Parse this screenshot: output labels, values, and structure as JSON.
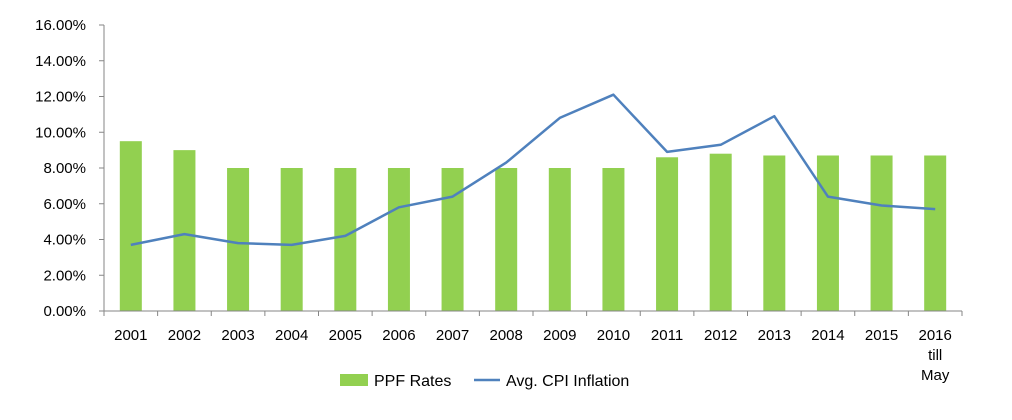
{
  "chart_data": {
    "type": "bar",
    "title": "",
    "xlabel": "",
    "ylabel": "",
    "categories": [
      "2001",
      "2002",
      "2003",
      "2004",
      "2005",
      "2006",
      "2007",
      "2008",
      "2009",
      "2010",
      "2011",
      "2012",
      "2013",
      "2014",
      "2015",
      "2016 till May"
    ],
    "category_lines": [
      [
        "2001"
      ],
      [
        "2002"
      ],
      [
        "2003"
      ],
      [
        "2004"
      ],
      [
        "2005"
      ],
      [
        "2006"
      ],
      [
        "2007"
      ],
      [
        "2008"
      ],
      [
        "2009"
      ],
      [
        "2010"
      ],
      [
        "2011"
      ],
      [
        "2012"
      ],
      [
        "2013"
      ],
      [
        "2014"
      ],
      [
        "2015"
      ],
      [
        "2016",
        "till",
        "May"
      ]
    ],
    "ylim": [
      0,
      16
    ],
    "yticks": [
      0,
      2,
      4,
      6,
      8,
      10,
      12,
      14,
      16
    ],
    "ytick_labels": [
      "0.00%",
      "2.00%",
      "4.00%",
      "6.00%",
      "8.00%",
      "10.00%",
      "12.00%",
      "14.00%",
      "16.00%"
    ],
    "grid": false,
    "legend_position": "bottom",
    "series": [
      {
        "name": "PPF Rates",
        "type": "bar",
        "color": "#92d050",
        "values": [
          9.5,
          9.0,
          8.0,
          8.0,
          8.0,
          8.0,
          8.0,
          8.0,
          8.0,
          8.0,
          8.6,
          8.8,
          8.7,
          8.7,
          8.7,
          8.7
        ]
      },
      {
        "name": "Avg. CPI Inflation",
        "type": "line",
        "color": "#4f81bd",
        "values": [
          3.7,
          4.3,
          3.8,
          3.7,
          4.2,
          5.8,
          6.4,
          8.3,
          10.8,
          12.1,
          8.9,
          9.3,
          10.9,
          6.4,
          5.9,
          5.7
        ]
      }
    ]
  }
}
